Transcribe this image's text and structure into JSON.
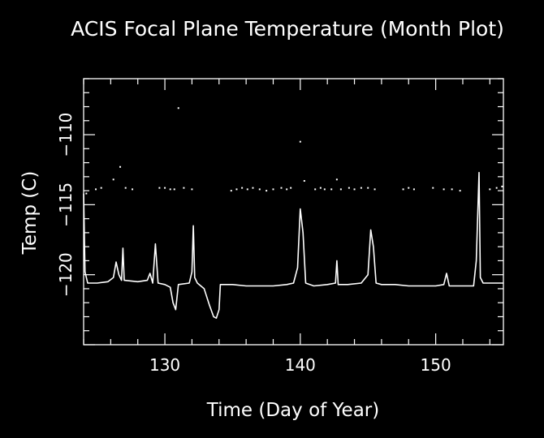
{
  "chart_data": {
    "type": "line",
    "title": "ACIS Focal Plane Temperature (Month Plot)",
    "xlabel": "Time (Day of Year)",
    "ylabel": "Temp (C)",
    "xlim": [
      124,
      155
    ],
    "ylim": [
      -125,
      -106
    ],
    "x_ticks": [
      130,
      140,
      150
    ],
    "y_ticks": [
      -110,
      -115,
      -120
    ],
    "x_tick_labels": [
      "130",
      "140",
      "150"
    ],
    "y_tick_labels": [
      "−110",
      "−115",
      "−120"
    ],
    "grid": false,
    "legend": "none",
    "colors": {
      "background": "#000000",
      "foreground": "#ffffff"
    },
    "series": [
      {
        "values_xy": [
          [
            124.0,
            -114.2
          ],
          [
            124.1,
            -119.8
          ],
          [
            124.3,
            -120.6
          ],
          [
            125.0,
            -120.6
          ],
          [
            125.8,
            -120.5
          ],
          [
            126.2,
            -120.2
          ],
          [
            126.4,
            -119.1
          ],
          [
            126.6,
            -120.0
          ],
          [
            126.8,
            -120.4
          ],
          [
            126.9,
            -118.1
          ],
          [
            127.0,
            -120.4
          ],
          [
            128.0,
            -120.5
          ],
          [
            128.7,
            -120.4
          ],
          [
            128.9,
            -119.9
          ],
          [
            129.1,
            -120.6
          ],
          [
            129.3,
            -117.8
          ],
          [
            129.5,
            -120.6
          ],
          [
            130.0,
            -120.7
          ],
          [
            130.4,
            -120.9
          ],
          [
            130.6,
            -122.0
          ],
          [
            130.8,
            -122.5
          ],
          [
            131.0,
            -120.7
          ],
          [
            131.8,
            -120.6
          ],
          [
            132.0,
            -119.8
          ],
          [
            132.1,
            -116.5
          ],
          [
            132.2,
            -120.2
          ],
          [
            132.4,
            -120.6
          ],
          [
            132.9,
            -121.0
          ],
          [
            133.3,
            -122.2
          ],
          [
            133.6,
            -123.0
          ],
          [
            133.8,
            -123.1
          ],
          [
            134.0,
            -122.5
          ],
          [
            134.1,
            -120.7
          ],
          [
            135.0,
            -120.7
          ],
          [
            136.0,
            -120.8
          ],
          [
            137.0,
            -120.8
          ],
          [
            138.0,
            -120.8
          ],
          [
            139.0,
            -120.7
          ],
          [
            139.5,
            -120.6
          ],
          [
            139.8,
            -119.5
          ],
          [
            140.0,
            -115.3
          ],
          [
            140.2,
            -117.0
          ],
          [
            140.4,
            -120.6
          ],
          [
            141.0,
            -120.8
          ],
          [
            142.0,
            -120.7
          ],
          [
            142.6,
            -120.6
          ],
          [
            142.7,
            -119.0
          ],
          [
            142.8,
            -120.7
          ],
          [
            143.5,
            -120.7
          ],
          [
            144.5,
            -120.6
          ],
          [
            145.0,
            -120.0
          ],
          [
            145.2,
            -116.8
          ],
          [
            145.4,
            -118.0
          ],
          [
            145.6,
            -120.6
          ],
          [
            146.0,
            -120.7
          ],
          [
            147.0,
            -120.7
          ],
          [
            148.0,
            -120.8
          ],
          [
            149.0,
            -120.8
          ],
          [
            150.0,
            -120.8
          ],
          [
            150.6,
            -120.7
          ],
          [
            150.8,
            -119.9
          ],
          [
            151.0,
            -120.8
          ],
          [
            152.0,
            -120.8
          ],
          [
            152.8,
            -120.8
          ],
          [
            153.0,
            -119.0
          ],
          [
            153.2,
            -112.7
          ],
          [
            153.3,
            -120.2
          ],
          [
            153.5,
            -120.6
          ],
          [
            154.0,
            -120.6
          ],
          [
            155.0,
            -120.6
          ]
        ]
      },
      {
        "style": "points",
        "values_xy": [
          [
            124.2,
            -114.2
          ],
          [
            124.9,
            -113.9
          ],
          [
            125.3,
            -113.8
          ],
          [
            126.2,
            -113.2
          ],
          [
            126.7,
            -112.3
          ],
          [
            127.1,
            -113.8
          ],
          [
            127.6,
            -113.9
          ],
          [
            129.6,
            -113.8
          ],
          [
            130.0,
            -113.8
          ],
          [
            130.4,
            -113.9
          ],
          [
            130.7,
            -113.9
          ],
          [
            131.0,
            -108.1
          ],
          [
            131.4,
            -113.8
          ],
          [
            132.0,
            -113.9
          ],
          [
            134.9,
            -114.0
          ],
          [
            135.3,
            -113.9
          ],
          [
            135.7,
            -113.8
          ],
          [
            136.1,
            -113.9
          ],
          [
            136.5,
            -113.8
          ],
          [
            137.0,
            -113.9
          ],
          [
            137.5,
            -114.0
          ],
          [
            138.0,
            -113.9
          ],
          [
            138.6,
            -113.8
          ],
          [
            139.0,
            -113.9
          ],
          [
            139.3,
            -113.8
          ],
          [
            140.0,
            -110.5
          ],
          [
            140.3,
            -113.3
          ],
          [
            141.1,
            -113.9
          ],
          [
            141.5,
            -113.8
          ],
          [
            141.8,
            -113.9
          ],
          [
            142.3,
            -113.9
          ],
          [
            142.7,
            -113.2
          ],
          [
            143.0,
            -113.9
          ],
          [
            143.6,
            -113.8
          ],
          [
            144.0,
            -113.9
          ],
          [
            144.5,
            -113.8
          ],
          [
            145.0,
            -113.8
          ],
          [
            145.5,
            -113.9
          ],
          [
            147.6,
            -113.9
          ],
          [
            148.0,
            -113.8
          ],
          [
            148.4,
            -113.9
          ],
          [
            149.8,
            -113.8
          ],
          [
            150.6,
            -113.9
          ],
          [
            151.2,
            -113.9
          ],
          [
            151.8,
            -114.0
          ],
          [
            154.0,
            -113.9
          ],
          [
            154.5,
            -113.8
          ],
          [
            154.9,
            -113.7
          ]
        ]
      }
    ]
  }
}
